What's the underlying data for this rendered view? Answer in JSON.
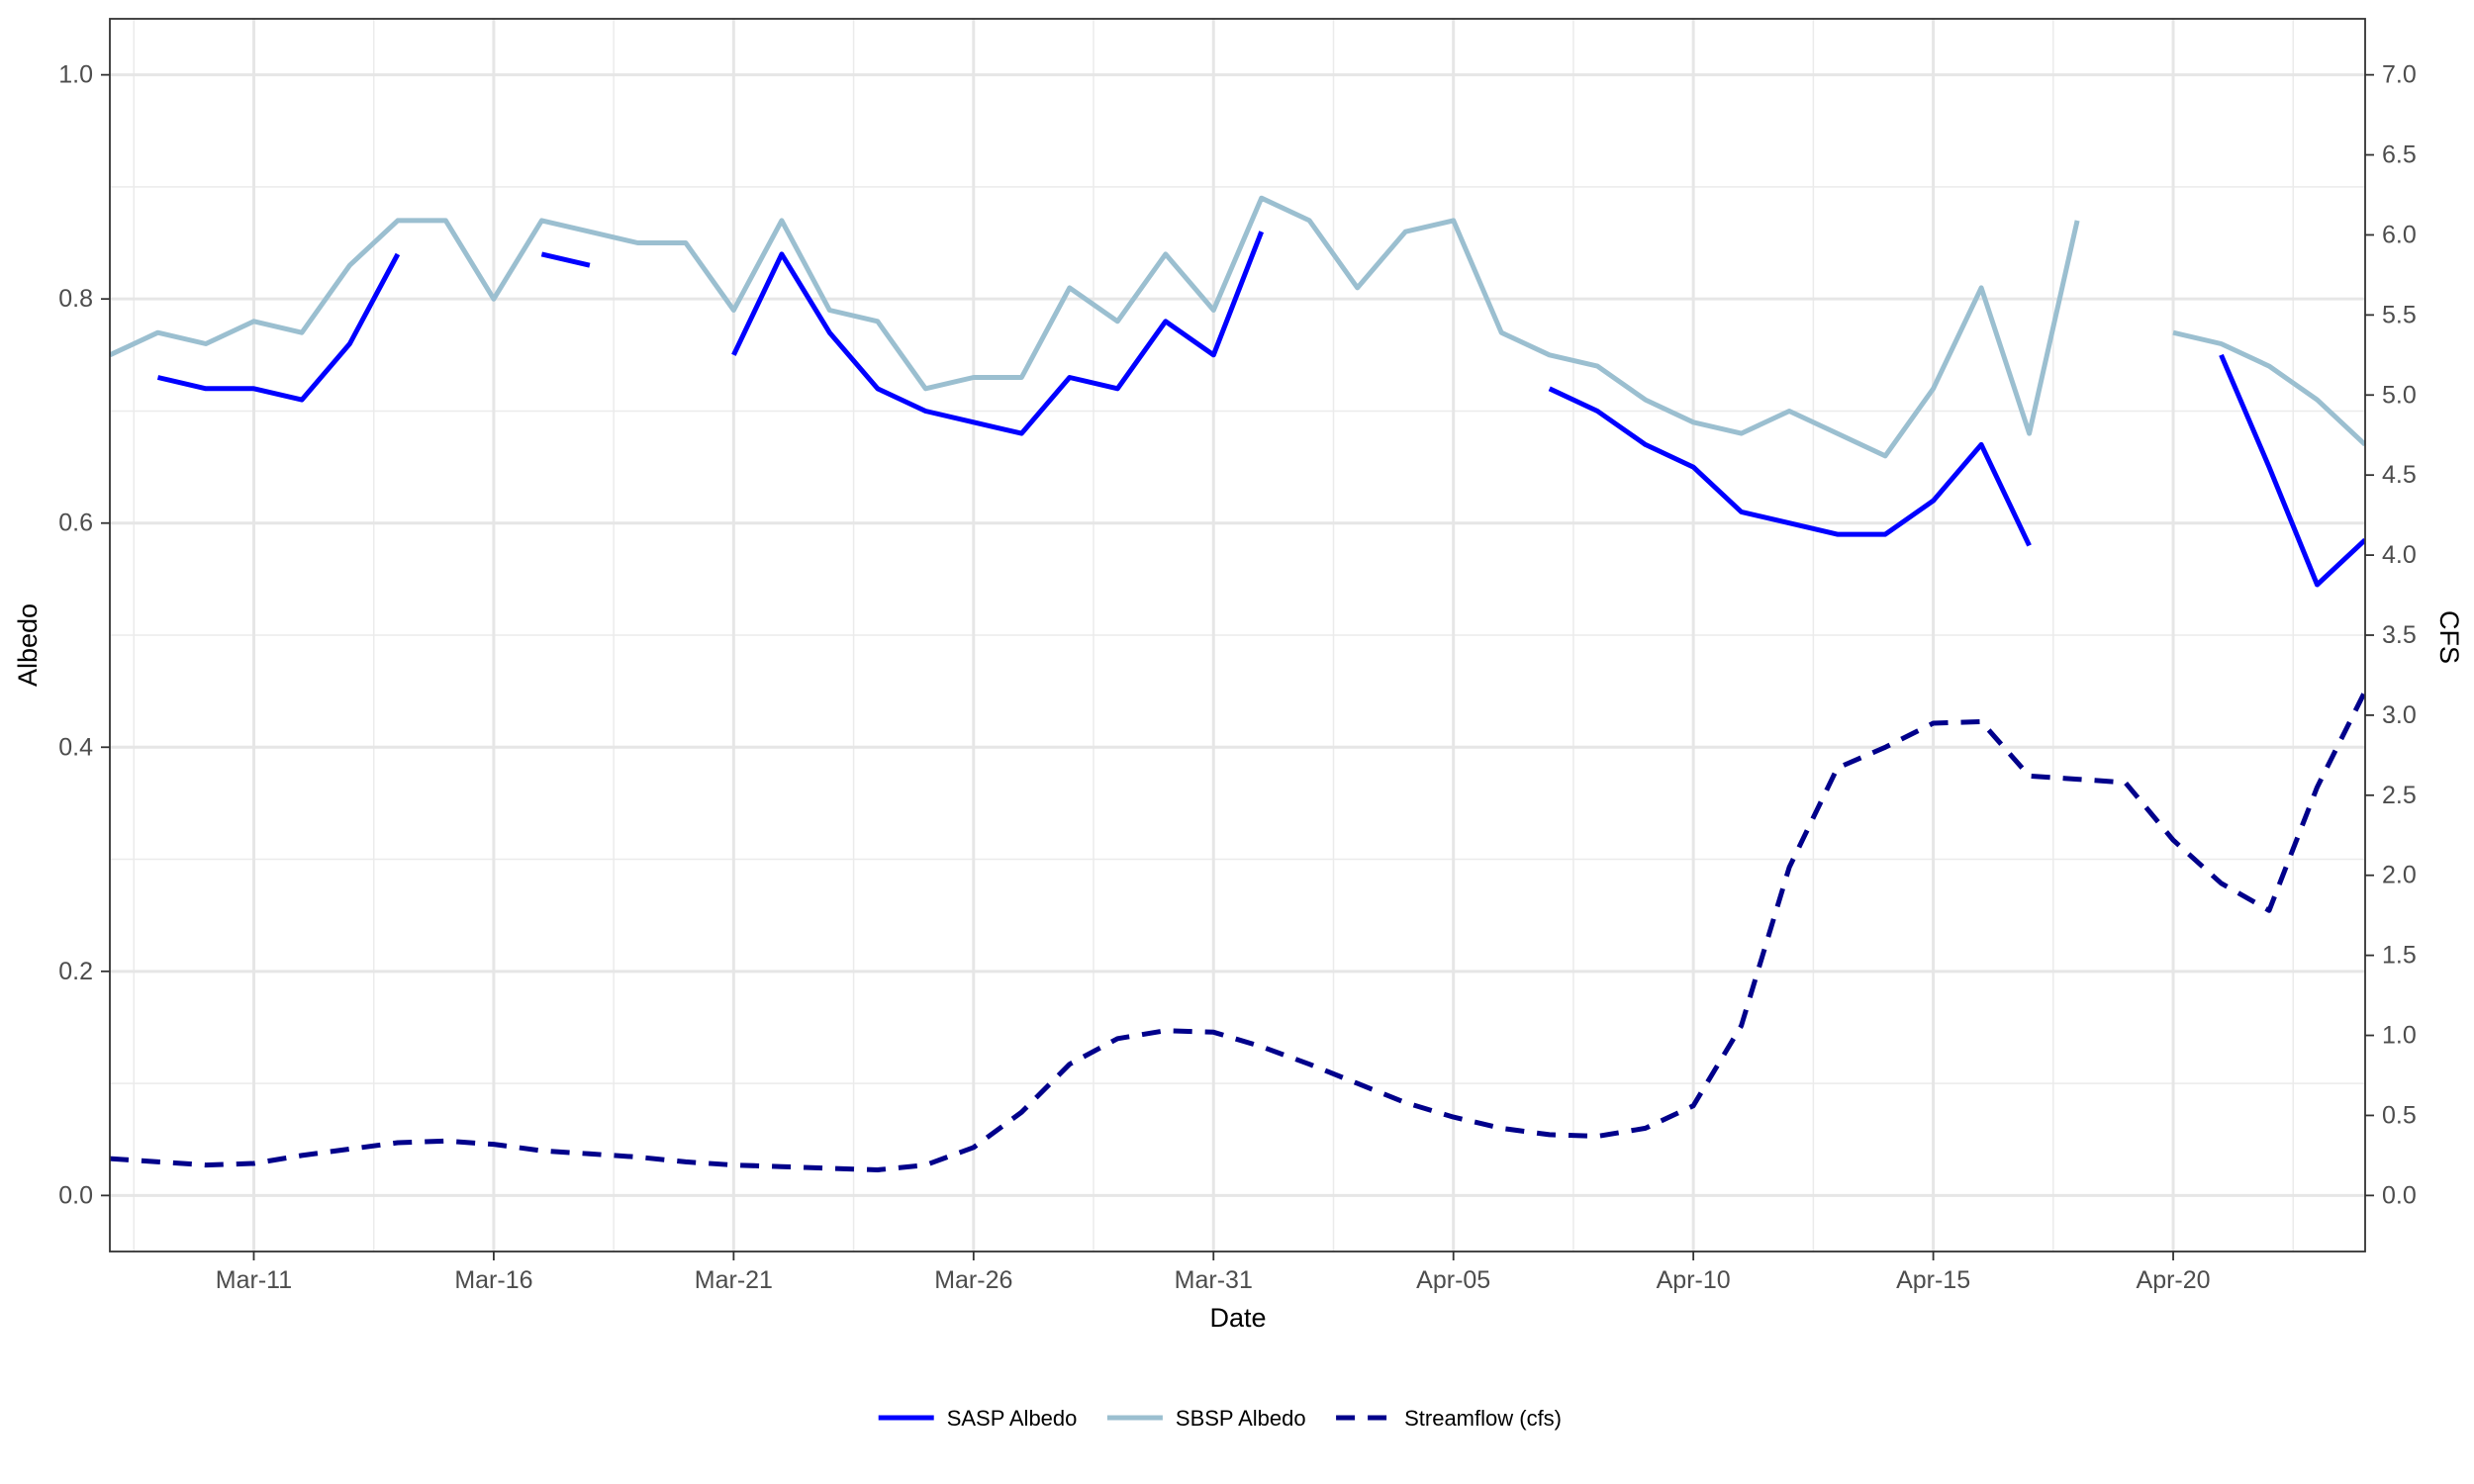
{
  "chart_data": {
    "type": "line",
    "x_axis": {
      "label": "Date",
      "unit": "day",
      "range": [
        "2023-03-08",
        "2023-04-24"
      ],
      "ticks": [
        {
          "date": "2023-03-11",
          "label": "Mar-11"
        },
        {
          "date": "2023-03-16",
          "label": "Mar-16"
        },
        {
          "date": "2023-03-21",
          "label": "Mar-21"
        },
        {
          "date": "2023-03-26",
          "label": "Mar-26"
        },
        {
          "date": "2023-03-31",
          "label": "Mar-31"
        },
        {
          "date": "2023-04-05",
          "label": "Apr-05"
        },
        {
          "date": "2023-04-10",
          "label": "Apr-10"
        },
        {
          "date": "2023-04-15",
          "label": "Apr-15"
        },
        {
          "date": "2023-04-20",
          "label": "Apr-20"
        }
      ]
    },
    "y_left": {
      "label": "Albedo",
      "ylim": [
        -0.05,
        1.05
      ],
      "ticks": [
        {
          "v": 0.0,
          "label": "0.0"
        },
        {
          "v": 0.2,
          "label": "0.2"
        },
        {
          "v": 0.4,
          "label": "0.4"
        },
        {
          "v": 0.6,
          "label": "0.6"
        },
        {
          "v": 0.8,
          "label": "0.8"
        },
        {
          "v": 1.0,
          "label": "1.0"
        }
      ]
    },
    "y_right": {
      "label": "CFS",
      "ylim": [
        -0.35,
        7.35
      ],
      "ticks": [
        {
          "v": 0.0,
          "label": "0.0"
        },
        {
          "v": 0.5,
          "label": "0.5"
        },
        {
          "v": 1.0,
          "label": "1.0"
        },
        {
          "v": 1.5,
          "label": "1.5"
        },
        {
          "v": 2.0,
          "label": "2.0"
        },
        {
          "v": 2.5,
          "label": "2.5"
        },
        {
          "v": 3.0,
          "label": "3.0"
        },
        {
          "v": 3.5,
          "label": "3.5"
        },
        {
          "v": 4.0,
          "label": "4.0"
        },
        {
          "v": 4.5,
          "label": "4.5"
        },
        {
          "v": 5.0,
          "label": "5.0"
        },
        {
          "v": 5.5,
          "label": "5.5"
        },
        {
          "v": 6.0,
          "label": "6.0"
        },
        {
          "v": 6.5,
          "label": "6.5"
        },
        {
          "v": 7.0,
          "label": "7.0"
        }
      ]
    },
    "grid": true,
    "legend": {
      "position": "bottom"
    },
    "series": [
      {
        "name": "SASP Albedo",
        "key": "sasp",
        "axis": "left",
        "color": "#0000ff",
        "dash": "solid",
        "points": [
          [
            "2023-03-09",
            0.73
          ],
          [
            "2023-03-10",
            0.72
          ],
          [
            "2023-03-11",
            0.72
          ],
          [
            "2023-03-12",
            0.71
          ],
          [
            "2023-03-13",
            0.76
          ],
          [
            "2023-03-14",
            0.84
          ],
          [
            "2023-03-15",
            null
          ],
          [
            "2023-03-16",
            null
          ],
          [
            "2023-03-17",
            0.84
          ],
          [
            "2023-03-18",
            0.83
          ],
          [
            "2023-03-19",
            null
          ],
          [
            "2023-03-20",
            null
          ],
          [
            "2023-03-21",
            0.75
          ],
          [
            "2023-03-22",
            0.84
          ],
          [
            "2023-03-23",
            0.77
          ],
          [
            "2023-03-24",
            0.72
          ],
          [
            "2023-03-25",
            0.7
          ],
          [
            "2023-03-26",
            0.69
          ],
          [
            "2023-03-27",
            0.68
          ],
          [
            "2023-03-28",
            0.73
          ],
          [
            "2023-03-29",
            0.72
          ],
          [
            "2023-03-30",
            0.78
          ],
          [
            "2023-03-31",
            0.75
          ],
          [
            "2023-04-01",
            0.86
          ],
          [
            "2023-04-02",
            null
          ],
          [
            "2023-04-06",
            null
          ],
          [
            "2023-04-07",
            0.72
          ],
          [
            "2023-04-08",
            0.7
          ],
          [
            "2023-04-09",
            0.67
          ],
          [
            "2023-04-10",
            0.65
          ],
          [
            "2023-04-11",
            0.61
          ],
          [
            "2023-04-12",
            0.6
          ],
          [
            "2023-04-13",
            0.59
          ],
          [
            "2023-04-14",
            0.59
          ],
          [
            "2023-04-15",
            0.62
          ],
          [
            "2023-04-16",
            0.67
          ],
          [
            "2023-04-17",
            0.58
          ],
          [
            "2023-04-18",
            null
          ],
          [
            "2023-04-20",
            null
          ],
          [
            "2023-04-21",
            0.75
          ],
          [
            "2023-04-22",
            0.65
          ],
          [
            "2023-04-23",
            0.545
          ],
          [
            "2023-04-24",
            0.585
          ]
        ]
      },
      {
        "name": "SBSP Albedo",
        "key": "sbsp",
        "axis": "left",
        "color": "#9bbfd0",
        "dash": "solid",
        "points": [
          [
            "2023-03-08",
            0.75
          ],
          [
            "2023-03-09",
            0.77
          ],
          [
            "2023-03-10",
            0.76
          ],
          [
            "2023-03-11",
            0.78
          ],
          [
            "2023-03-12",
            0.77
          ],
          [
            "2023-03-13",
            0.83
          ],
          [
            "2023-03-14",
            0.87
          ],
          [
            "2023-03-15",
            0.87
          ],
          [
            "2023-03-16",
            0.8
          ],
          [
            "2023-03-17",
            0.87
          ],
          [
            "2023-03-18",
            0.86
          ],
          [
            "2023-03-19",
            0.85
          ],
          [
            "2023-03-20",
            0.85
          ],
          [
            "2023-03-21",
            0.79
          ],
          [
            "2023-03-22",
            0.87
          ],
          [
            "2023-03-23",
            0.79
          ],
          [
            "2023-03-24",
            0.78
          ],
          [
            "2023-03-25",
            0.72
          ],
          [
            "2023-03-26",
            0.73
          ],
          [
            "2023-03-27",
            0.73
          ],
          [
            "2023-03-28",
            0.81
          ],
          [
            "2023-03-29",
            0.78
          ],
          [
            "2023-03-30",
            0.84
          ],
          [
            "2023-03-31",
            0.79
          ],
          [
            "2023-04-01",
            0.89
          ],
          [
            "2023-04-02",
            0.87
          ],
          [
            "2023-04-03",
            0.81
          ],
          [
            "2023-04-04",
            0.86
          ],
          [
            "2023-04-05",
            0.87
          ],
          [
            "2023-04-06",
            0.77
          ],
          [
            "2023-04-07",
            0.75
          ],
          [
            "2023-04-08",
            0.74
          ],
          [
            "2023-04-09",
            0.71
          ],
          [
            "2023-04-10",
            0.69
          ],
          [
            "2023-04-11",
            0.68
          ],
          [
            "2023-04-12",
            0.7
          ],
          [
            "2023-04-13",
            0.68
          ],
          [
            "2023-04-14",
            0.66
          ],
          [
            "2023-04-15",
            0.72
          ],
          [
            "2023-04-16",
            0.81
          ],
          [
            "2023-04-17",
            0.68
          ],
          [
            "2023-04-18",
            0.87
          ],
          [
            "2023-04-19",
            null
          ],
          [
            "2023-04-20",
            0.77
          ],
          [
            "2023-04-21",
            0.76
          ],
          [
            "2023-04-22",
            0.74
          ],
          [
            "2023-04-23",
            0.71
          ],
          [
            "2023-04-24",
            0.67
          ]
        ]
      },
      {
        "name": "Streamflow (cfs)",
        "key": "streamflow",
        "axis": "right",
        "color": "#00008b",
        "dash": "dashed",
        "points": [
          [
            "2023-03-08",
            0.23
          ],
          [
            "2023-03-09",
            0.21
          ],
          [
            "2023-03-10",
            0.19
          ],
          [
            "2023-03-11",
            0.2
          ],
          [
            "2023-03-12",
            0.25
          ],
          [
            "2023-03-13",
            0.29
          ],
          [
            "2023-03-14",
            0.33
          ],
          [
            "2023-03-15",
            0.34
          ],
          [
            "2023-03-16",
            0.32
          ],
          [
            "2023-03-17",
            0.28
          ],
          [
            "2023-03-18",
            0.26
          ],
          [
            "2023-03-19",
            0.24
          ],
          [
            "2023-03-20",
            0.21
          ],
          [
            "2023-03-21",
            0.19
          ],
          [
            "2023-03-22",
            0.18
          ],
          [
            "2023-03-23",
            0.17
          ],
          [
            "2023-03-24",
            0.16
          ],
          [
            "2023-03-25",
            0.19
          ],
          [
            "2023-03-26",
            0.3
          ],
          [
            "2023-03-27",
            0.52
          ],
          [
            "2023-03-28",
            0.82
          ],
          [
            "2023-03-29",
            0.98
          ],
          [
            "2023-03-30",
            1.03
          ],
          [
            "2023-03-31",
            1.02
          ],
          [
            "2023-04-01",
            0.93
          ],
          [
            "2023-04-02",
            0.82
          ],
          [
            "2023-04-03",
            0.7
          ],
          [
            "2023-04-04",
            0.58
          ],
          [
            "2023-04-05",
            0.49
          ],
          [
            "2023-04-06",
            0.42
          ],
          [
            "2023-04-07",
            0.38
          ],
          [
            "2023-04-08",
            0.37
          ],
          [
            "2023-04-09",
            0.42
          ],
          [
            "2023-04-10",
            0.56
          ],
          [
            "2023-04-11",
            1.06
          ],
          [
            "2023-04-12",
            2.05
          ],
          [
            "2023-04-13",
            2.67
          ],
          [
            "2023-04-14",
            2.8
          ],
          [
            "2023-04-15",
            2.95
          ],
          [
            "2023-04-16",
            2.96
          ],
          [
            "2023-04-17",
            2.62
          ],
          [
            "2023-04-18",
            2.6
          ],
          [
            "2023-04-19",
            2.58
          ],
          [
            "2023-04-20",
            2.22
          ],
          [
            "2023-04-21",
            1.95
          ],
          [
            "2023-04-22",
            1.78
          ],
          [
            "2023-04-23",
            2.55
          ],
          [
            "2023-04-24",
            3.15
          ]
        ]
      }
    ]
  }
}
